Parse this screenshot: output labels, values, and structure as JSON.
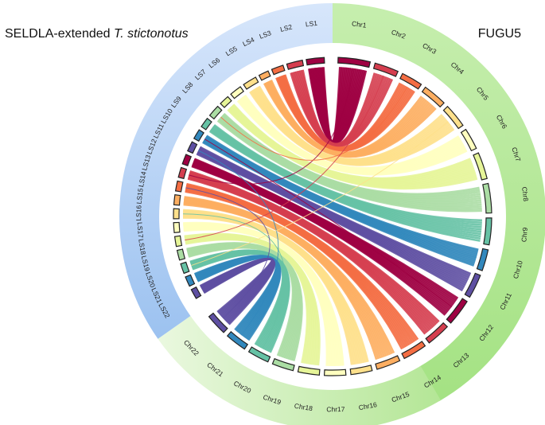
{
  "left_title": {
    "prefix": "SELDLA-extended ",
    "species": "T. stictonotus"
  },
  "right_title": "FUGU5",
  "colors": {
    "left_band": "#9cc2f0",
    "right_band": "#a4e283",
    "tick_outline": "#222222"
  },
  "left_chromosomes": [
    {
      "label": "LS1",
      "color": "#9e0142"
    },
    {
      "label": "LS2",
      "color": "#d53e4f"
    },
    {
      "label": "LS3",
      "color": "#f46d43"
    },
    {
      "label": "LS4",
      "color": "#fdae61"
    },
    {
      "label": "LS5",
      "color": "#fee08b"
    },
    {
      "label": "LS6",
      "color": "#ffffbf"
    },
    {
      "label": "LS7",
      "color": "#e6f598"
    },
    {
      "label": "LS8",
      "color": "#abdda4"
    },
    {
      "label": "LS9",
      "color": "#66c2a5"
    },
    {
      "label": "LS10",
      "color": "#3288bd"
    },
    {
      "label": "LS11",
      "color": "#5e4fa2"
    },
    {
      "label": "LS12",
      "color": "#9e0142"
    },
    {
      "label": "LS13",
      "color": "#d53e4f"
    },
    {
      "label": "LS14",
      "color": "#f46d43"
    },
    {
      "label": "LS15",
      "color": "#fdae61"
    },
    {
      "label": "LS16",
      "color": "#fee08b"
    },
    {
      "label": "LS17",
      "color": "#ffffbf"
    },
    {
      "label": "LS18",
      "color": "#e6f598"
    },
    {
      "label": "LS19",
      "color": "#abdda4"
    },
    {
      "label": "LS20",
      "color": "#66c2a5"
    },
    {
      "label": "LS21",
      "color": "#3288bd"
    },
    {
      "label": "LS22",
      "color": "#5e4fa2"
    }
  ],
  "right_chromosomes": [
    {
      "label": "Chr1",
      "color": "#9e0142"
    },
    {
      "label": "Chr2",
      "color": "#d53e4f"
    },
    {
      "label": "Chr3",
      "color": "#f46d43"
    },
    {
      "label": "Chr4",
      "color": "#fdae61"
    },
    {
      "label": "Chr5",
      "color": "#fee08b"
    },
    {
      "label": "Chr6",
      "color": "#ffffbf"
    },
    {
      "label": "Chr7",
      "color": "#e6f598"
    },
    {
      "label": "Chr8",
      "color": "#abdda4"
    },
    {
      "label": "Chr9",
      "color": "#66c2a5"
    },
    {
      "label": "Chr10",
      "color": "#3288bd"
    },
    {
      "label": "Chr11",
      "color": "#5e4fa2"
    },
    {
      "label": "Chr12",
      "color": "#9e0142"
    },
    {
      "label": "Chr13",
      "color": "#d53e4f"
    },
    {
      "label": "Chr14",
      "color": "#f46d43"
    },
    {
      "label": "Chr15",
      "color": "#fdae61"
    },
    {
      "label": "Chr16",
      "color": "#fee08b"
    },
    {
      "label": "Chr17",
      "color": "#ffffbf"
    },
    {
      "label": "Chr18",
      "color": "#e6f598"
    },
    {
      "label": "Chr19",
      "color": "#abdda4"
    },
    {
      "label": "Chr20",
      "color": "#66c2a5"
    },
    {
      "label": "Chr21",
      "color": "#3288bd"
    },
    {
      "label": "Chr22",
      "color": "#5e4fa2"
    }
  ],
  "links": [
    {
      "from": "Chr1",
      "to": "LS1",
      "color": "#9e0142",
      "n": 22
    },
    {
      "from": "Chr2",
      "to": "LS2",
      "color": "#d53e4f",
      "n": 10
    },
    {
      "from": "Chr3",
      "to": "LS3",
      "color": "#f46d43",
      "n": 10
    },
    {
      "from": "Chr4",
      "to": "LS4",
      "color": "#fdae61",
      "n": 10
    },
    {
      "from": "Chr5",
      "to": "LS5",
      "color": "#fee08b",
      "n": 10
    },
    {
      "from": "Chr6",
      "to": "LS6",
      "color": "#ffffbf",
      "n": 10
    },
    {
      "from": "Chr7",
      "to": "LS7",
      "color": "#e6f598",
      "n": 12
    },
    {
      "from": "Chr8",
      "to": "LS8",
      "color": "#abdda4",
      "n": 12
    },
    {
      "from": "Chr9",
      "to": "LS9",
      "color": "#66c2a5",
      "n": 10
    },
    {
      "from": "Chr10",
      "to": "LS10",
      "color": "#3288bd",
      "n": 10
    },
    {
      "from": "Chr11",
      "to": "LS11",
      "color": "#5e4fa2",
      "n": 10
    },
    {
      "from": "Chr12",
      "to": "LS12",
      "color": "#9e0142",
      "n": 12
    },
    {
      "from": "Chr13",
      "to": "LS13",
      "color": "#d53e4f",
      "n": 10
    },
    {
      "from": "Chr14",
      "to": "LS14",
      "color": "#f46d43",
      "n": 10
    },
    {
      "from": "Chr15",
      "to": "LS15",
      "color": "#fdae61",
      "n": 10
    },
    {
      "from": "Chr16",
      "to": "LS16",
      "color": "#fee08b",
      "n": 10
    },
    {
      "from": "Chr17",
      "to": "LS17",
      "color": "#ffffbf",
      "n": 10
    },
    {
      "from": "Chr18",
      "to": "LS18",
      "color": "#e6f598",
      "n": 10
    },
    {
      "from": "Chr19",
      "to": "LS19",
      "color": "#abdda4",
      "n": 14
    },
    {
      "from": "Chr20",
      "to": "LS20",
      "color": "#66c2a5",
      "n": 14
    },
    {
      "from": "Chr21",
      "to": "LS21",
      "color": "#3288bd",
      "n": 14
    },
    {
      "from": "Chr22",
      "to": "LS22",
      "color": "#5e4fa2",
      "n": 14
    },
    {
      "from": "Chr1",
      "to": "LS13",
      "color": "#9e0142",
      "n": 1
    },
    {
      "from": "Chr3",
      "to": "LS8",
      "color": "#f46d43",
      "n": 1
    },
    {
      "from": "Chr12",
      "to": "LS10",
      "color": "#9e0142",
      "n": 1
    },
    {
      "from": "Chr20",
      "to": "LS16",
      "color": "#66c2a5",
      "n": 1
    },
    {
      "from": "Chr21",
      "to": "LS11",
      "color": "#3288bd",
      "n": 1
    },
    {
      "from": "Chr22",
      "to": "LS14",
      "color": "#5e4fa2",
      "n": 1
    },
    {
      "from": "Chr2",
      "to": "LS18",
      "color": "#d53e4f",
      "n": 1
    },
    {
      "from": "Chr5",
      "to": "LS20",
      "color": "#fee08b",
      "n": 1
    }
  ]
}
